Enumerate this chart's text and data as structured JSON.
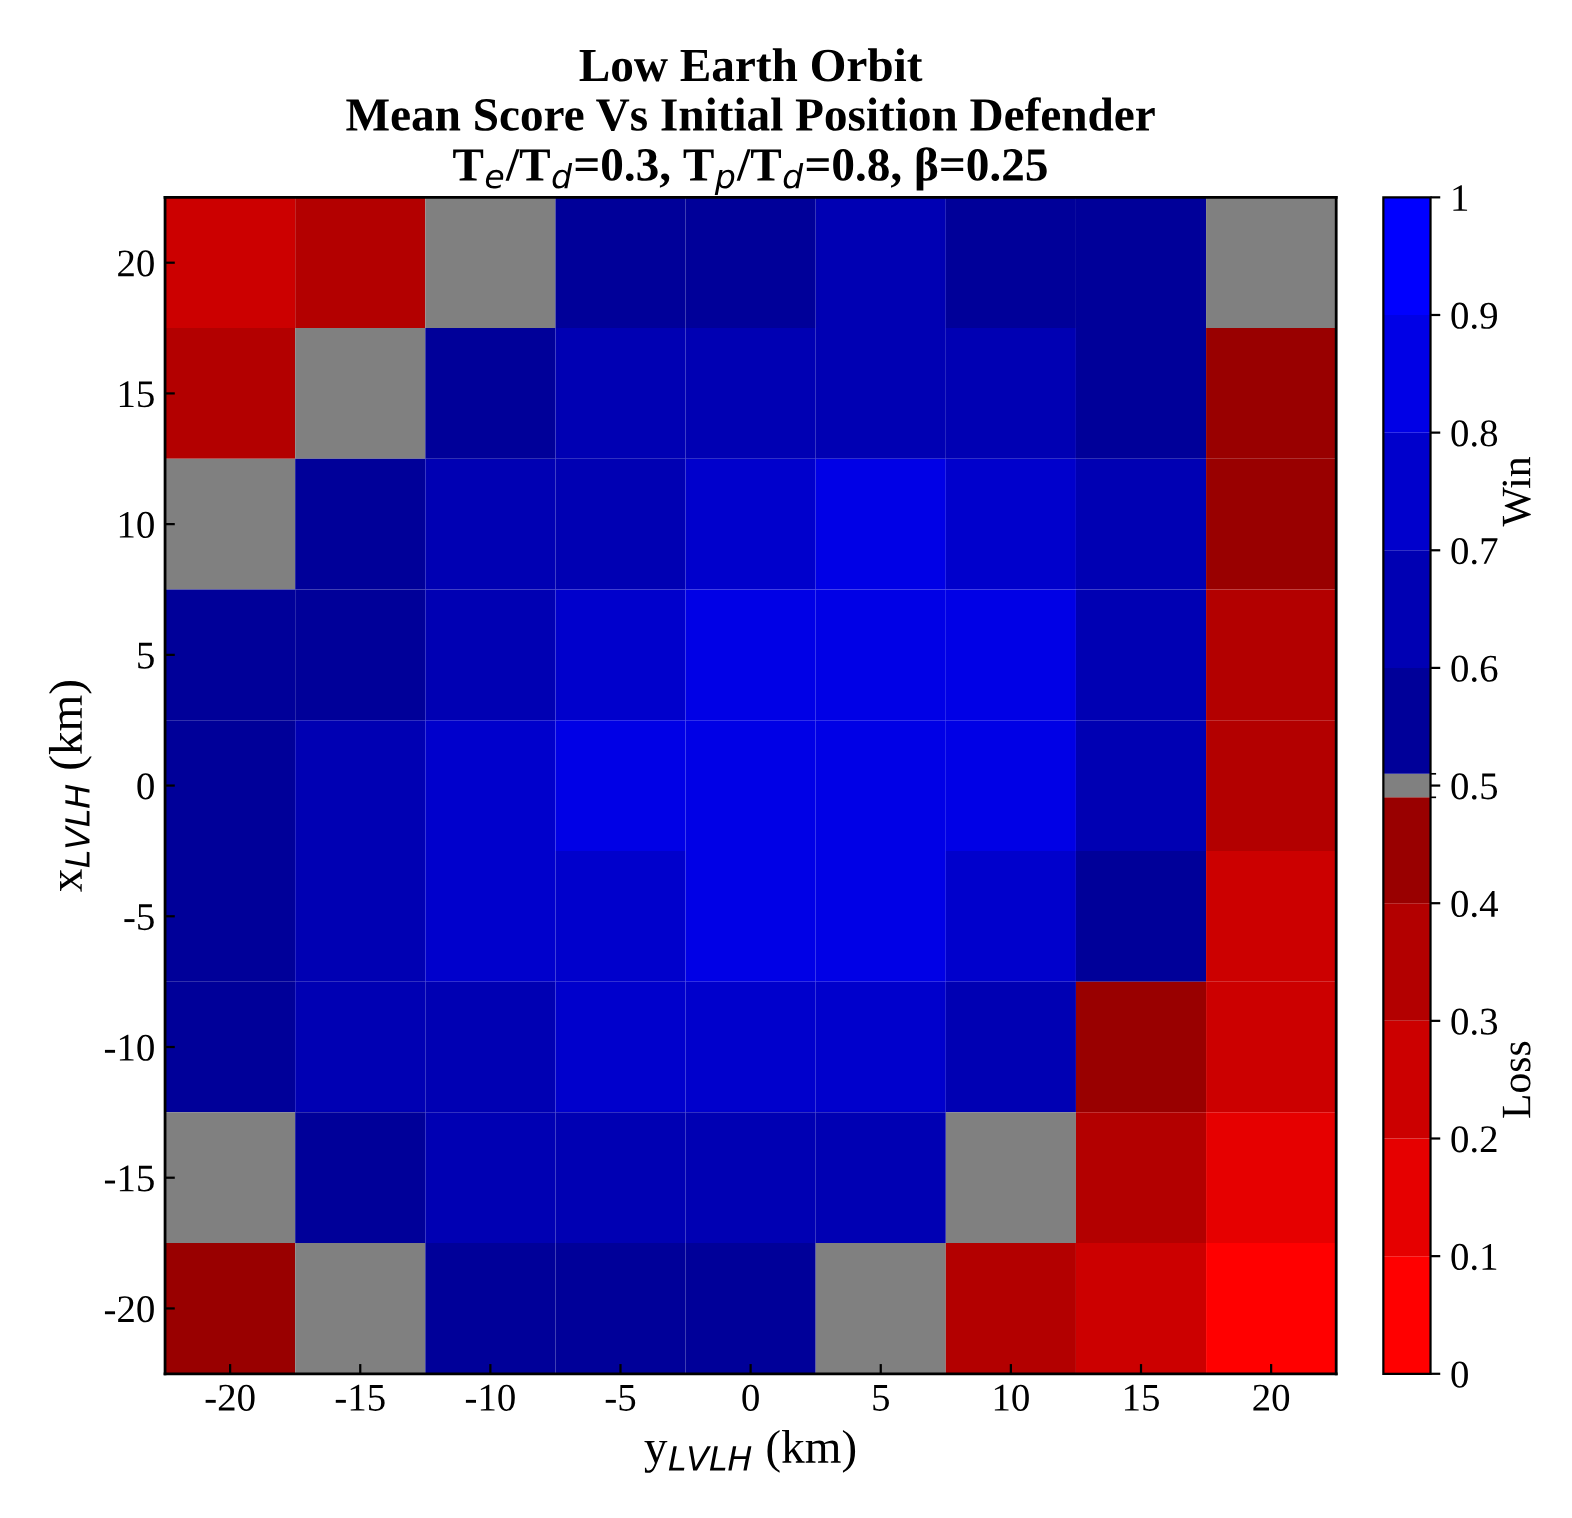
{
  "chart_data": {
    "type": "heatmap",
    "title": "Low Earth Orbit\nMean Score Vs Initial Position Defender\nT$_{e}$/T$_{d}$=0.3, T$_{p}$/T$_{d}$=0.8, β=0.25",
    "xlabel": "y$_{LVLH}$ (km)",
    "ylabel": "x$_{LVLH}$ (km)",
    "categories": [
      "-20",
      "-15",
      "-10",
      "-5",
      "0",
      "5",
      "10",
      "15",
      "20"
    ],
    "y_categories": [
      "20",
      "15",
      "10",
      "5",
      "0",
      "-5",
      "-10",
      "-15",
      "-20"
    ],
    "cells": [
      [
        0.2,
        0.3,
        0.5,
        0.55,
        0.58,
        0.6,
        0.58,
        0.55,
        0.5
      ],
      [
        0.35,
        0.5,
        0.55,
        0.6,
        0.65,
        0.68,
        0.65,
        0.58,
        0.45
      ],
      [
        0.5,
        0.55,
        0.6,
        0.68,
        0.75,
        0.8,
        0.75,
        0.65,
        0.4
      ],
      [
        0.52,
        0.58,
        0.65,
        0.75,
        0.82,
        0.84,
        0.8,
        0.65,
        0.35
      ],
      [
        0.55,
        0.62,
        0.7,
        0.8,
        0.85,
        0.85,
        0.8,
        0.62,
        0.3
      ],
      [
        0.55,
        0.62,
        0.7,
        0.78,
        0.82,
        0.8,
        0.72,
        0.55,
        0.25
      ],
      [
        0.55,
        0.6,
        0.68,
        0.72,
        0.75,
        0.7,
        0.6,
        0.45,
        0.2
      ],
      [
        0.5,
        0.55,
        0.6,
        0.65,
        0.65,
        0.6,
        0.5,
        0.3,
        0.1
      ],
      [
        0.4,
        0.5,
        0.55,
        0.58,
        0.55,
        0.5,
        0.35,
        0.2,
        0.05
      ]
    ],
    "clim": [
      0,
      1
    ],
    "cticks": [
      0,
      0.1,
      0.2,
      0.3,
      0.4,
      0.5,
      0.6,
      0.7,
      0.8,
      0.9,
      1
    ],
    "annotations": [
      "Win",
      "Loss"
    ]
  }
}
